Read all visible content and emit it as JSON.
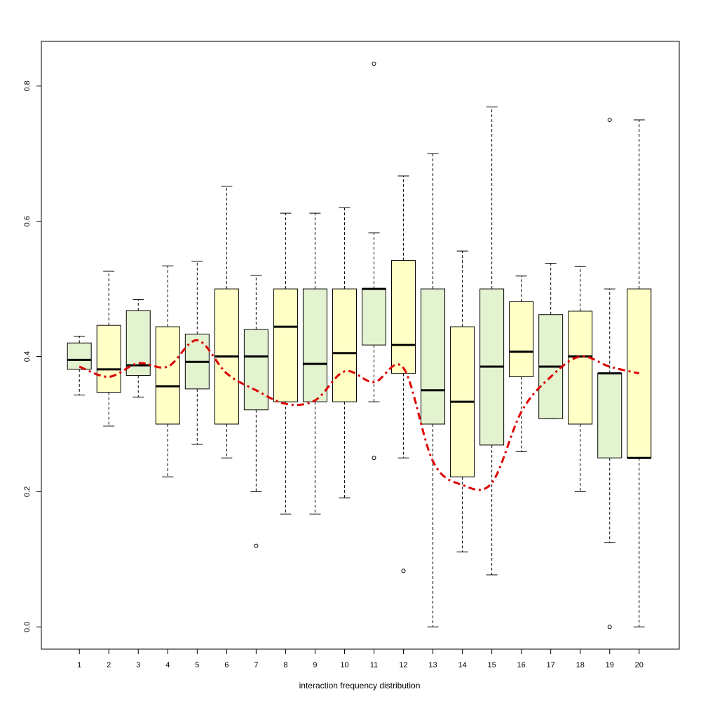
{
  "chart_data": {
    "type": "boxplot",
    "title": "",
    "xlabel": "interaction frequency distribution",
    "ylabel": "",
    "ylim": [
      -0.03,
      0.86
    ],
    "yticks": [
      0.0,
      0.2,
      0.4,
      0.6,
      0.8
    ],
    "ytick_labels": [
      "0.0",
      "0.2",
      "0.4",
      "0.6",
      "0.8"
    ],
    "categories": [
      "1",
      "2",
      "3",
      "4",
      "5",
      "6",
      "7",
      "8",
      "9",
      "10",
      "11",
      "12",
      "13",
      "14",
      "15",
      "16",
      "17",
      "18",
      "19",
      "20"
    ],
    "box_colors": {
      "green": "#e3f2cf",
      "yellow": "#ffffc6"
    },
    "boxes": [
      {
        "category": "1",
        "lower_whisker": 0.343,
        "q1": 0.381,
        "median": 0.395,
        "q3": 0.42,
        "upper_whisker": 0.43,
        "outliers": [],
        "fill": "green"
      },
      {
        "category": "2",
        "lower_whisker": 0.297,
        "q1": 0.347,
        "median": 0.381,
        "q3": 0.446,
        "upper_whisker": 0.526,
        "outliers": [],
        "fill": "yellow"
      },
      {
        "category": "3",
        "lower_whisker": 0.34,
        "q1": 0.372,
        "median": 0.387,
        "q3": 0.468,
        "upper_whisker": 0.484,
        "outliers": [],
        "fill": "green"
      },
      {
        "category": "4",
        "lower_whisker": 0.222,
        "q1": 0.3,
        "median": 0.356,
        "q3": 0.444,
        "upper_whisker": 0.534,
        "outliers": [],
        "fill": "yellow"
      },
      {
        "category": "5",
        "lower_whisker": 0.27,
        "q1": 0.352,
        "median": 0.392,
        "q3": 0.433,
        "upper_whisker": 0.541,
        "outliers": [],
        "fill": "green"
      },
      {
        "category": "6",
        "lower_whisker": 0.25,
        "q1": 0.3,
        "median": 0.4,
        "q3": 0.5,
        "upper_whisker": 0.652,
        "outliers": [],
        "fill": "yellow"
      },
      {
        "category": "7",
        "lower_whisker": 0.2,
        "q1": 0.321,
        "median": 0.4,
        "q3": 0.44,
        "upper_whisker": 0.52,
        "outliers": [
          0.12
        ],
        "fill": "green"
      },
      {
        "category": "8",
        "lower_whisker": 0.167,
        "q1": 0.333,
        "median": 0.444,
        "q3": 0.5,
        "upper_whisker": 0.612,
        "outliers": [],
        "fill": "yellow"
      },
      {
        "category": "9",
        "lower_whisker": 0.167,
        "q1": 0.333,
        "median": 0.389,
        "q3": 0.5,
        "upper_whisker": 0.612,
        "outliers": [],
        "fill": "green"
      },
      {
        "category": "10",
        "lower_whisker": 0.191,
        "q1": 0.333,
        "median": 0.405,
        "q3": 0.5,
        "upper_whisker": 0.62,
        "outliers": [],
        "fill": "yellow"
      },
      {
        "category": "11",
        "lower_whisker": 0.333,
        "q1": 0.417,
        "median": 0.5,
        "q3": 0.5,
        "upper_whisker": 0.583,
        "outliers": [
          0.833,
          0.25
        ],
        "fill": "green"
      },
      {
        "category": "12",
        "lower_whisker": 0.25,
        "q1": 0.375,
        "median": 0.417,
        "q3": 0.542,
        "upper_whisker": 0.667,
        "outliers": [
          0.083
        ],
        "fill": "yellow"
      },
      {
        "category": "13",
        "lower_whisker": 0.0,
        "q1": 0.3,
        "median": 0.35,
        "q3": 0.5,
        "upper_whisker": 0.7,
        "outliers": [],
        "fill": "green"
      },
      {
        "category": "14",
        "lower_whisker": 0.111,
        "q1": 0.222,
        "median": 0.333,
        "q3": 0.444,
        "upper_whisker": 0.556,
        "outliers": [],
        "fill": "yellow"
      },
      {
        "category": "15",
        "lower_whisker": 0.077,
        "q1": 0.269,
        "median": 0.385,
        "q3": 0.5,
        "upper_whisker": 0.769,
        "outliers": [],
        "fill": "green"
      },
      {
        "category": "16",
        "lower_whisker": 0.259,
        "q1": 0.37,
        "median": 0.407,
        "q3": 0.481,
        "upper_whisker": 0.519,
        "outliers": [],
        "fill": "yellow"
      },
      {
        "category": "17",
        "lower_whisker": 0.308,
        "q1": 0.308,
        "median": 0.385,
        "q3": 0.462,
        "upper_whisker": 0.538,
        "outliers": [],
        "fill": "green"
      },
      {
        "category": "18",
        "lower_whisker": 0.2,
        "q1": 0.3,
        "median": 0.4,
        "q3": 0.467,
        "upper_whisker": 0.533,
        "outliers": [],
        "fill": "yellow"
      },
      {
        "category": "19",
        "lower_whisker": 0.125,
        "q1": 0.25,
        "median": 0.375,
        "q3": 0.375,
        "upper_whisker": 0.5,
        "outliers": [
          0.75,
          0.0
        ],
        "fill": "green"
      },
      {
        "category": "20",
        "lower_whisker": 0.0,
        "q1": 0.25,
        "median": 0.25,
        "q3": 0.5,
        "upper_whisker": 0.75,
        "outliers": [],
        "fill": "yellow"
      }
    ],
    "trend_line": {
      "style": "dashed",
      "color": "#dd0000",
      "values": [
        0.385,
        0.37,
        0.39,
        0.385,
        0.424,
        0.375,
        0.35,
        0.33,
        0.335,
        0.378,
        0.362,
        0.383,
        0.245,
        0.21,
        0.213,
        0.318,
        0.37,
        0.4,
        0.385,
        0.375
      ]
    },
    "grid": false
  }
}
